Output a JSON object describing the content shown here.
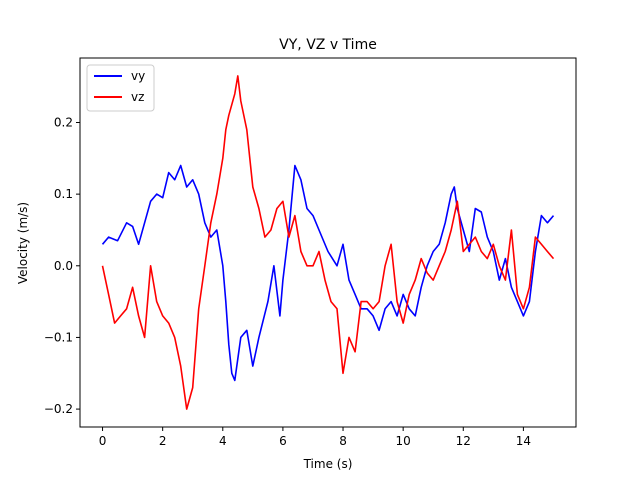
{
  "chart_data": {
    "type": "line",
    "title": "VY, VZ v Time",
    "xlabel": "Time (s)",
    "ylabel": "Velocity (m/s)",
    "xlim": [
      -0.75,
      15.75
    ],
    "ylim": [
      -0.225,
      0.29
    ],
    "xticks": [
      0,
      2,
      4,
      6,
      8,
      10,
      12,
      14
    ],
    "xtick_labels": [
      "0",
      "2",
      "4",
      "6",
      "8",
      "10",
      "12",
      "14"
    ],
    "yticks": [
      -0.2,
      -0.1,
      0.0,
      0.1,
      0.2
    ],
    "ytick_labels": [
      "−0.2",
      "−0.1",
      "0.0",
      "0.1",
      "0.2"
    ],
    "grid": false,
    "legend_position": "top-left",
    "series": [
      {
        "name": "vy",
        "color": "#0000ff",
        "x": [
          0,
          0.2,
          0.5,
          0.8,
          1.0,
          1.2,
          1.4,
          1.6,
          1.8,
          2.0,
          2.2,
          2.4,
          2.6,
          2.8,
          3.0,
          3.2,
          3.4,
          3.6,
          3.8,
          4.0,
          4.1,
          4.2,
          4.3,
          4.4,
          4.5,
          4.6,
          4.8,
          5.0,
          5.2,
          5.5,
          5.7,
          5.9,
          6.0,
          6.2,
          6.4,
          6.6,
          6.8,
          7.0,
          7.2,
          7.5,
          7.8,
          8.0,
          8.2,
          8.4,
          8.6,
          8.8,
          9.0,
          9.2,
          9.4,
          9.6,
          9.8,
          10.0,
          10.2,
          10.4,
          10.6,
          10.8,
          11.0,
          11.2,
          11.4,
          11.6,
          11.7,
          11.8,
          12.0,
          12.2,
          12.4,
          12.6,
          12.8,
          13.0,
          13.2,
          13.4,
          13.6,
          13.8,
          14.0,
          14.2,
          14.4,
          14.6,
          14.8,
          15.0
        ],
        "y": [
          0.03,
          0.04,
          0.035,
          0.06,
          0.055,
          0.03,
          0.06,
          0.09,
          0.1,
          0.095,
          0.13,
          0.12,
          0.14,
          0.11,
          0.12,
          0.1,
          0.06,
          0.04,
          0.05,
          0.0,
          -0.05,
          -0.11,
          -0.15,
          -0.16,
          -0.13,
          -0.1,
          -0.09,
          -0.14,
          -0.1,
          -0.05,
          0.0,
          -0.07,
          -0.02,
          0.05,
          0.14,
          0.12,
          0.08,
          0.07,
          0.05,
          0.02,
          0.0,
          0.03,
          -0.02,
          -0.04,
          -0.06,
          -0.06,
          -0.07,
          -0.09,
          -0.06,
          -0.05,
          -0.07,
          -0.04,
          -0.06,
          -0.07,
          -0.03,
          0.0,
          0.02,
          0.03,
          0.06,
          0.1,
          0.11,
          0.08,
          0.05,
          0.02,
          0.08,
          0.075,
          0.04,
          0.02,
          -0.02,
          0.01,
          -0.03,
          -0.05,
          -0.07,
          -0.05,
          0.02,
          0.07,
          0.06,
          0.07
        ]
      },
      {
        "name": "vz",
        "color": "#ff0000",
        "x": [
          0,
          0.2,
          0.4,
          0.6,
          0.8,
          1.0,
          1.2,
          1.4,
          1.6,
          1.8,
          2.0,
          2.2,
          2.4,
          2.6,
          2.8,
          3.0,
          3.2,
          3.4,
          3.6,
          3.8,
          4.0,
          4.1,
          4.2,
          4.4,
          4.5,
          4.6,
          4.8,
          5.0,
          5.2,
          5.4,
          5.6,
          5.8,
          6.0,
          6.2,
          6.4,
          6.6,
          6.8,
          7.0,
          7.2,
          7.4,
          7.6,
          7.8,
          8.0,
          8.2,
          8.4,
          8.6,
          8.8,
          9.0,
          9.2,
          9.4,
          9.6,
          9.8,
          10.0,
          10.2,
          10.4,
          10.6,
          10.8,
          11.0,
          11.2,
          11.4,
          11.6,
          11.8,
          12.0,
          12.2,
          12.4,
          12.6,
          12.8,
          13.0,
          13.2,
          13.4,
          13.6,
          13.8,
          14.0,
          14.2,
          14.4,
          14.6,
          14.8,
          15.0
        ],
        "y": [
          0.0,
          -0.04,
          -0.08,
          -0.07,
          -0.06,
          -0.03,
          -0.07,
          -0.1,
          0.0,
          -0.05,
          -0.07,
          -0.08,
          -0.1,
          -0.14,
          -0.2,
          -0.17,
          -0.06,
          0.0,
          0.06,
          0.1,
          0.15,
          0.19,
          0.21,
          0.24,
          0.265,
          0.23,
          0.19,
          0.11,
          0.08,
          0.04,
          0.05,
          0.08,
          0.09,
          0.04,
          0.07,
          0.02,
          0.0,
          0.0,
          0.02,
          -0.02,
          -0.05,
          -0.06,
          -0.15,
          -0.1,
          -0.12,
          -0.05,
          -0.05,
          -0.06,
          -0.05,
          0.0,
          0.03,
          -0.05,
          -0.08,
          -0.04,
          -0.02,
          0.01,
          -0.01,
          -0.02,
          0.0,
          0.02,
          0.05,
          0.09,
          0.02,
          0.03,
          0.04,
          0.02,
          0.01,
          0.03,
          0.0,
          -0.02,
          0.05,
          -0.04,
          -0.06,
          -0.03,
          0.04,
          0.03,
          0.02,
          0.01
        ]
      }
    ]
  }
}
